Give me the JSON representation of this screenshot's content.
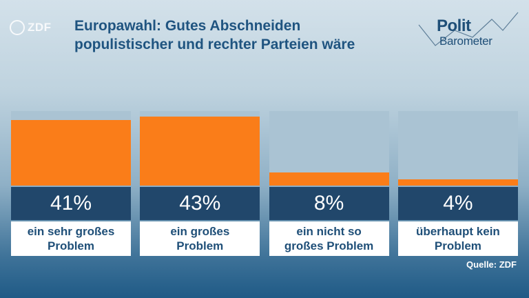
{
  "logo": {
    "text": "ZDF"
  },
  "title": {
    "line1": "Europawahl: Gutes Abschneiden",
    "line2": "populistischer und rechter Parteien wäre"
  },
  "brand": {
    "word1": "Polit",
    "word2": "Barometer"
  },
  "source": "Quelle: ZDF",
  "colors": {
    "bar": "#fa7d19",
    "track": "#aac3d3",
    "value_box": "#21476b",
    "title": "#1f5480"
  },
  "chart_data": {
    "type": "bar",
    "categories": [
      [
        "ein sehr großes",
        "Problem"
      ],
      [
        "ein großes",
        "Problem"
      ],
      [
        "ein nicht so",
        "großes Problem"
      ],
      [
        "überhaupt kein",
        "Problem"
      ]
    ],
    "values": [
      41,
      43,
      8,
      4
    ],
    "value_labels": [
      "41%",
      "43%",
      "8%",
      "4%"
    ],
    "ylim": [
      0,
      45
    ],
    "unit": "%"
  }
}
